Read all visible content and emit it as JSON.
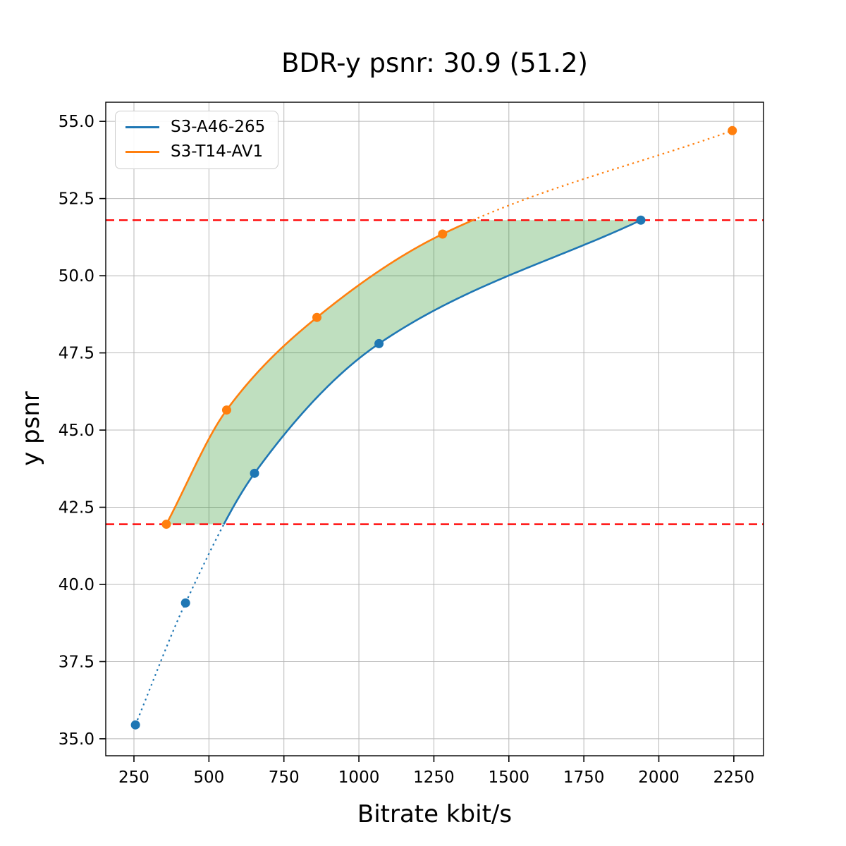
{
  "chart_data": {
    "type": "line",
    "title": "BDR-y psnr: 30.9 (51.2)",
    "xlabel": "Bitrate kbit/s",
    "ylabel": "y psnr",
    "xlim": [
      156,
      2349
    ],
    "ylim": [
      34.45,
      55.62
    ],
    "x_ticks": [
      250,
      500,
      750,
      1000,
      1250,
      1500,
      1750,
      2000,
      2250
    ],
    "y_ticks": [
      35.0,
      37.5,
      40.0,
      42.5,
      45.0,
      47.5,
      50.0,
      52.5,
      55.0
    ],
    "grid": true,
    "grid_color": "#b8b8b8",
    "legend_position": "upper-left",
    "series": [
      {
        "name": "S3-A46-265",
        "color": "#1f77b4",
        "points": [
          [
            255,
            35.45
          ],
          [
            422,
            39.4
          ],
          [
            652,
            43.6
          ],
          [
            1067,
            47.8
          ],
          [
            1940,
            51.8
          ]
        ],
        "dotted_segment": "below lower hline"
      },
      {
        "name": "S3-T14-AV1",
        "color": "#ff7f0e",
        "points": [
          [
            358,
            41.95
          ],
          [
            559,
            45.65
          ],
          [
            860,
            48.65
          ],
          [
            1279,
            51.35
          ],
          [
            2245,
            54.7
          ]
        ],
        "dotted_segment": "above upper hline"
      }
    ],
    "hlines": {
      "values": [
        41.95,
        51.8
      ],
      "color": "#ff0000",
      "style": "dashed"
    },
    "shaded_region": {
      "color": "rgba(0,128,0,0.25)",
      "between": [
        "S3-T14-AV1",
        "S3-A46-265"
      ]
    }
  }
}
